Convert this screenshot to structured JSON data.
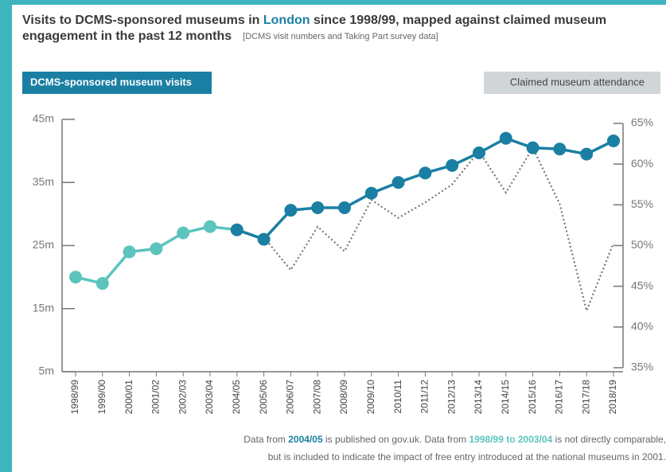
{
  "chart_data": {
    "type": "line",
    "title_lines": [
      [
        "Visits to DCMS-sponsored museums in ",
        "London",
        " since 1998/99, mapped against claimed museum"
      ],
      [
        "engagement in the past 12 months"
      ]
    ],
    "subtitle": "[DCMS visit numbers and Taking Part survey data]",
    "categories": [
      "1998/99",
      "1999/00",
      "2000/01",
      "2001/02",
      "2002/03",
      "2003/04",
      "2004/05",
      "2005/06",
      "2006/07",
      "2007/08",
      "2008/09",
      "2009/10",
      "2010/11",
      "2011/12",
      "2012/13",
      "2013/14",
      "2014/15",
      "2015/16",
      "2016/17",
      "2017/18",
      "2018/19"
    ],
    "series": [
      {
        "name": "DCMS-sponsored museum visits",
        "color": "#1a7fa3",
        "point_colors": [
          "#5cc4bd",
          "#5cc4bd",
          "#5cc4bd",
          "#5cc4bd",
          "#5cc4bd",
          "#5cc4bd",
          "#1a7fa3",
          "#1a7fa3",
          "#1a7fa3",
          "#1a7fa3",
          "#1a7fa3",
          "#1a7fa3",
          "#1a7fa3",
          "#1a7fa3",
          "#1a7fa3",
          "#1a7fa3",
          "#1a7fa3",
          "#1a7fa3",
          "#1a7fa3",
          "#1a7fa3",
          "#1a7fa3"
        ],
        "values": [
          20,
          19,
          24,
          24.5,
          27,
          28,
          27.5,
          26,
          30.6,
          31,
          31,
          33.3,
          35,
          36.5,
          37.7,
          39.7,
          42,
          40.5,
          40.3,
          39.5,
          41.6
        ]
      },
      {
        "name": "Claimed museum attendance",
        "color": "#777777",
        "axis": "y2",
        "values": [
          null,
          null,
          null,
          null,
          null,
          null,
          null,
          51,
          47,
          52.3,
          49.3,
          55.6,
          53.4,
          55.3,
          57.5,
          61.6,
          56.5,
          62,
          55.1,
          42,
          50.3
        ]
      }
    ],
    "ylim": [
      5,
      45
    ],
    "yticks": [
      {
        "value": 5,
        "label": "5m"
      },
      {
        "value": 15,
        "label": "15m"
      },
      {
        "value": 25,
        "label": "25m"
      },
      {
        "value": 35,
        "label": "35m"
      },
      {
        "value": 45,
        "label": "45m"
      }
    ],
    "y2lim": [
      35,
      65
    ],
    "y2ticks": [
      {
        "value": 35,
        "label": "35%"
      },
      {
        "value": 40,
        "label": "40%"
      },
      {
        "value": 45,
        "label": "45%"
      },
      {
        "value": 50,
        "label": "50%"
      },
      {
        "value": 55,
        "label": "55%"
      },
      {
        "value": 60,
        "label": "60%"
      },
      {
        "value": 65,
        "label": "65%"
      }
    ],
    "footnote_lines": [
      [
        "Data from ",
        "2004/05",
        " is published on gov.uk. Data from ",
        "1998/99 to 2003/04",
        " is not directly comparable,"
      ],
      [
        "but is included to indicate the impact of free entry introduced at the national museums in 2001."
      ]
    ]
  }
}
